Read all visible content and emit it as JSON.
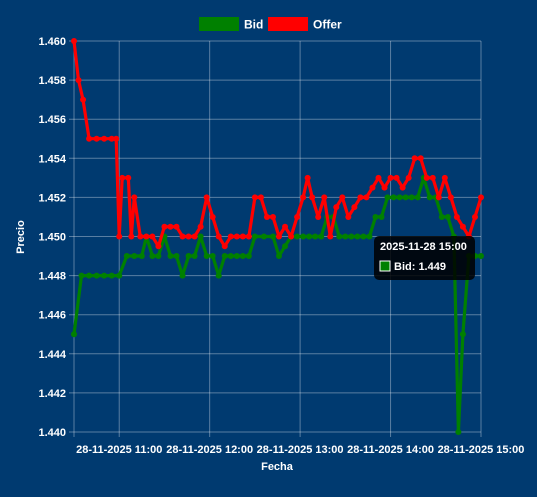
{
  "chart_data": {
    "type": "line",
    "title": "",
    "xlabel": "Fecha",
    "ylabel": "Precio",
    "ylim": [
      1.44,
      1.46
    ],
    "y_ticks": [
      "1.440",
      "1.442",
      "1.444",
      "1.446",
      "1.448",
      "1.450",
      "1.452",
      "1.454",
      "1.456",
      "1.458",
      "1.460"
    ],
    "xlim": [
      "2025-11-28 10:30",
      "2025-11-28 15:00"
    ],
    "x_ticks": [
      {
        "t": "2025-11-28 11:00",
        "label": "28-11-2025 11:00"
      },
      {
        "t": "2025-11-28 12:00",
        "label": "28-11-2025 12:00"
      },
      {
        "t": "2025-11-28 13:00",
        "label": "28-11-2025 13:00"
      },
      {
        "t": "2025-11-28 14:00",
        "label": "28-11-2025 14:00"
      },
      {
        "t": "2025-11-28 15:00",
        "label": "28-11-2025 15:00"
      }
    ],
    "grid": true,
    "legend": "top-center",
    "series": [
      {
        "name": "Bid",
        "color": "#008000",
        "points": [
          [
            "2025-11-28 10:30",
            1.445
          ],
          [
            "2025-11-28 10:35",
            1.448
          ],
          [
            "2025-11-28 10:40",
            1.448
          ],
          [
            "2025-11-28 10:45",
            1.448
          ],
          [
            "2025-11-28 10:50",
            1.448
          ],
          [
            "2025-11-28 10:55",
            1.448
          ],
          [
            "2025-11-28 11:00",
            1.448
          ],
          [
            "2025-11-28 11:05",
            1.449
          ],
          [
            "2025-11-28 11:10",
            1.449
          ],
          [
            "2025-11-28 11:15",
            1.449
          ],
          [
            "2025-11-28 11:18",
            1.45
          ],
          [
            "2025-11-28 11:22",
            1.449
          ],
          [
            "2025-11-28 11:26",
            1.449
          ],
          [
            "2025-11-28 11:30",
            1.45
          ],
          [
            "2025-11-28 11:34",
            1.449
          ],
          [
            "2025-11-28 11:38",
            1.449
          ],
          [
            "2025-11-28 11:42",
            1.448
          ],
          [
            "2025-11-28 11:46",
            1.449
          ],
          [
            "2025-11-28 11:50",
            1.449
          ],
          [
            "2025-11-28 11:54",
            1.45
          ],
          [
            "2025-11-28 11:58",
            1.449
          ],
          [
            "2025-11-28 12:02",
            1.449
          ],
          [
            "2025-11-28 12:06",
            1.448
          ],
          [
            "2025-11-28 12:10",
            1.449
          ],
          [
            "2025-11-28 12:14",
            1.449
          ],
          [
            "2025-11-28 12:18",
            1.449
          ],
          [
            "2025-11-28 12:22",
            1.449
          ],
          [
            "2025-11-28 12:26",
            1.449
          ],
          [
            "2025-11-28 12:30",
            1.45
          ],
          [
            "2025-11-28 12:36",
            1.45
          ],
          [
            "2025-11-28 12:42",
            1.45
          ],
          [
            "2025-11-28 12:46",
            1.449
          ],
          [
            "2025-11-28 12:50",
            1.4495
          ],
          [
            "2025-11-28 12:54",
            1.45
          ],
          [
            "2025-11-28 12:58",
            1.45
          ],
          [
            "2025-11-28 13:02",
            1.45
          ],
          [
            "2025-11-28 13:06",
            1.45
          ],
          [
            "2025-11-28 13:10",
            1.45
          ],
          [
            "2025-11-28 13:14",
            1.45
          ],
          [
            "2025-11-28 13:18",
            1.451
          ],
          [
            "2025-11-28 13:22",
            1.451
          ],
          [
            "2025-11-28 13:26",
            1.45
          ],
          [
            "2025-11-28 13:30",
            1.45
          ],
          [
            "2025-11-28 13:34",
            1.45
          ],
          [
            "2025-11-28 13:38",
            1.45
          ],
          [
            "2025-11-28 13:42",
            1.45
          ],
          [
            "2025-11-28 13:46",
            1.45
          ],
          [
            "2025-11-28 13:50",
            1.451
          ],
          [
            "2025-11-28 13:54",
            1.451
          ],
          [
            "2025-11-28 13:58",
            1.452
          ],
          [
            "2025-11-28 14:02",
            1.452
          ],
          [
            "2025-11-28 14:06",
            1.452
          ],
          [
            "2025-11-28 14:10",
            1.452
          ],
          [
            "2025-11-28 14:14",
            1.452
          ],
          [
            "2025-11-28 14:18",
            1.452
          ],
          [
            "2025-11-28 14:22",
            1.453
          ],
          [
            "2025-11-28 14:26",
            1.452
          ],
          [
            "2025-11-28 14:30",
            1.452
          ],
          [
            "2025-11-28 14:34",
            1.451
          ],
          [
            "2025-11-28 14:38",
            1.451
          ],
          [
            "2025-11-28 14:42",
            1.45
          ],
          [
            "2025-11-28 14:45",
            1.44
          ],
          [
            "2025-11-28 14:48",
            1.445
          ],
          [
            "2025-11-28 14:52",
            1.449
          ],
          [
            "2025-11-28 14:56",
            1.449
          ],
          [
            "2025-11-28 15:00",
            1.449
          ]
        ]
      },
      {
        "name": "Offer",
        "color": "#ff0000",
        "points": [
          [
            "2025-11-28 10:30",
            1.46
          ],
          [
            "2025-11-28 10:33",
            1.458
          ],
          [
            "2025-11-28 10:36",
            1.457
          ],
          [
            "2025-11-28 10:40",
            1.455
          ],
          [
            "2025-11-28 10:45",
            1.455
          ],
          [
            "2025-11-28 10:50",
            1.455
          ],
          [
            "2025-11-28 10:55",
            1.455
          ],
          [
            "2025-11-28 10:58",
            1.455
          ],
          [
            "2025-11-28 11:00",
            1.45
          ],
          [
            "2025-11-28 11:02",
            1.453
          ],
          [
            "2025-11-28 11:06",
            1.453
          ],
          [
            "2025-11-28 11:08",
            1.45
          ],
          [
            "2025-11-28 11:10",
            1.452
          ],
          [
            "2025-11-28 11:14",
            1.45
          ],
          [
            "2025-11-28 11:18",
            1.45
          ],
          [
            "2025-11-28 11:22",
            1.45
          ],
          [
            "2025-11-28 11:26",
            1.4495
          ],
          [
            "2025-11-28 11:30",
            1.4505
          ],
          [
            "2025-11-28 11:34",
            1.4505
          ],
          [
            "2025-11-28 11:38",
            1.4505
          ],
          [
            "2025-11-28 11:42",
            1.45
          ],
          [
            "2025-11-28 11:46",
            1.45
          ],
          [
            "2025-11-28 11:50",
            1.45
          ],
          [
            "2025-11-28 11:54",
            1.4505
          ],
          [
            "2025-11-28 11:58",
            1.452
          ],
          [
            "2025-11-28 12:02",
            1.451
          ],
          [
            "2025-11-28 12:06",
            1.45
          ],
          [
            "2025-11-28 12:10",
            1.4495
          ],
          [
            "2025-11-28 12:14",
            1.45
          ],
          [
            "2025-11-28 12:18",
            1.45
          ],
          [
            "2025-11-28 12:22",
            1.45
          ],
          [
            "2025-11-28 12:26",
            1.45
          ],
          [
            "2025-11-28 12:30",
            1.452
          ],
          [
            "2025-11-28 12:34",
            1.452
          ],
          [
            "2025-11-28 12:38",
            1.451
          ],
          [
            "2025-11-28 12:42",
            1.451
          ],
          [
            "2025-11-28 12:46",
            1.45
          ],
          [
            "2025-11-28 12:50",
            1.4505
          ],
          [
            "2025-11-28 12:54",
            1.45
          ],
          [
            "2025-11-28 12:58",
            1.451
          ],
          [
            "2025-11-28 13:02",
            1.452
          ],
          [
            "2025-11-28 13:05",
            1.453
          ],
          [
            "2025-11-28 13:08",
            1.452
          ],
          [
            "2025-11-28 13:12",
            1.451
          ],
          [
            "2025-11-28 13:16",
            1.452
          ],
          [
            "2025-11-28 13:20",
            1.45
          ],
          [
            "2025-11-28 13:24",
            1.4515
          ],
          [
            "2025-11-28 13:28",
            1.452
          ],
          [
            "2025-11-28 13:32",
            1.451
          ],
          [
            "2025-11-28 13:36",
            1.4515
          ],
          [
            "2025-11-28 13:40",
            1.452
          ],
          [
            "2025-11-28 13:44",
            1.452
          ],
          [
            "2025-11-28 13:48",
            1.4525
          ],
          [
            "2025-11-28 13:52",
            1.453
          ],
          [
            "2025-11-28 13:56",
            1.4525
          ],
          [
            "2025-11-28 14:00",
            1.453
          ],
          [
            "2025-11-28 14:04",
            1.453
          ],
          [
            "2025-11-28 14:08",
            1.4525
          ],
          [
            "2025-11-28 14:12",
            1.453
          ],
          [
            "2025-11-28 14:16",
            1.454
          ],
          [
            "2025-11-28 14:20",
            1.454
          ],
          [
            "2025-11-28 14:24",
            1.453
          ],
          [
            "2025-11-28 14:28",
            1.453
          ],
          [
            "2025-11-28 14:32",
            1.452
          ],
          [
            "2025-11-28 14:36",
            1.453
          ],
          [
            "2025-11-28 14:40",
            1.452
          ],
          [
            "2025-11-28 14:44",
            1.451
          ],
          [
            "2025-11-28 14:48",
            1.4505
          ],
          [
            "2025-11-28 14:52",
            1.45
          ],
          [
            "2025-11-28 14:56",
            1.451
          ],
          [
            "2025-11-28 15:00",
            1.452
          ]
        ]
      }
    ],
    "tooltip": {
      "title": "2025-11-28 15:00",
      "series": "Bid",
      "label": "Bid: 1.449",
      "t": "2025-11-28 15:00",
      "value": 1.449
    }
  }
}
